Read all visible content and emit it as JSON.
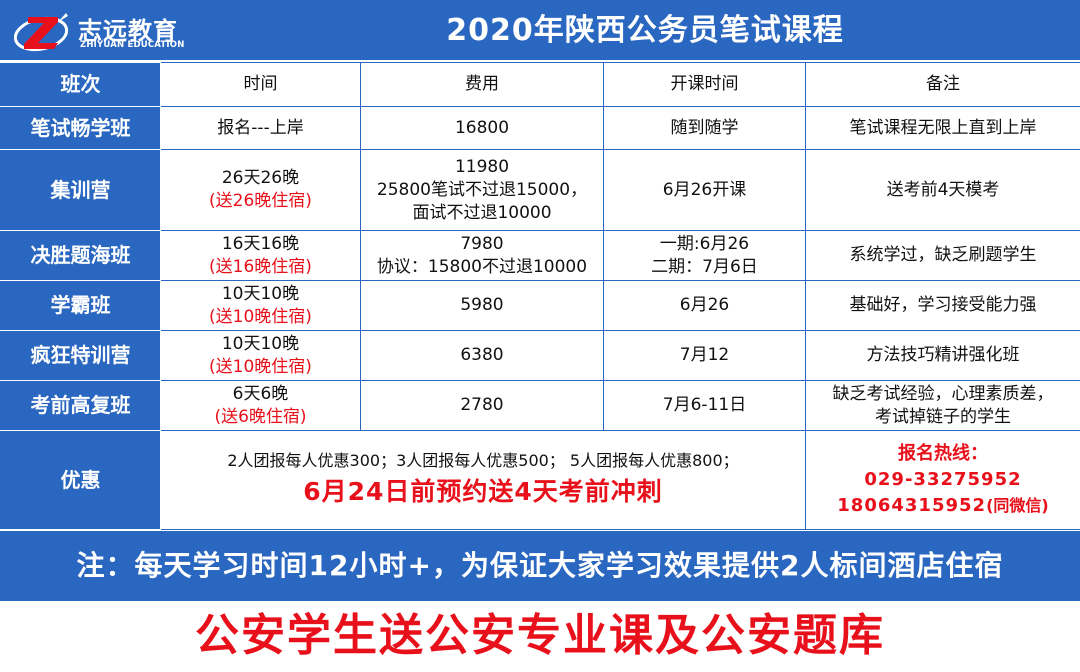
{
  "header": {
    "brand_name": "志远教育",
    "brand_sub": "ZHIYUAN EDUCATION",
    "title": "2020年陕西公务员笔试课程"
  },
  "columns": [
    "班次",
    "时间",
    "费用",
    "开课时间",
    "备注"
  ],
  "rows": [
    {
      "name": "笔试畅学班",
      "time": [
        "报名---上岸"
      ],
      "fee": [
        "16800"
      ],
      "start": [
        "随到随学"
      ],
      "note": [
        "笔试课程无限上直到上岸"
      ]
    },
    {
      "name": "集训营",
      "time": [
        "26天26晚"
      ],
      "time_bonus": "(送26晚住宿)",
      "fee": [
        "11980",
        "25800笔试不过退15000，",
        "面试不过退10000"
      ],
      "start": [
        "6月26开课"
      ],
      "note": [
        "送考前4天模考"
      ]
    },
    {
      "name": "决胜题海班",
      "time": [
        "16天16晚"
      ],
      "time_bonus": "(送16晚住宿)",
      "fee": [
        "7980",
        "协议：15800不过退10000"
      ],
      "start": [
        "一期:6月26",
        "二期：7月6日"
      ],
      "note": [
        "系统学过，缺乏刷题学生"
      ]
    },
    {
      "name": "学霸班",
      "time": [
        "10天10晚"
      ],
      "time_bonus": "(送10晚住宿)",
      "fee": [
        "5980"
      ],
      "start": [
        "6月26"
      ],
      "note": [
        "基础好，学习接受能力强"
      ]
    },
    {
      "name": "疯狂特训营",
      "time": [
        "10天10晚"
      ],
      "time_bonus": "(送10晚住宿)",
      "fee": [
        "6380"
      ],
      "start": [
        "7月12"
      ],
      "note": [
        "方法技巧精讲强化班"
      ]
    },
    {
      "name": "考前高复班",
      "time": [
        "6天6晚"
      ],
      "time_bonus": "(送6晚住宿)",
      "fee": [
        "2780"
      ],
      "start": [
        "7月6-11日"
      ],
      "note": [
        "缺乏考试经验，心理素质差，",
        "考试掉链子的学生"
      ]
    }
  ],
  "promo": {
    "label": "优惠",
    "line": "2人团报每人优惠300；3人团报每人优惠500； 5人团报每人优惠800；",
    "highlight": "6月24日前预约送4天考前冲刺",
    "hotline_label": "报名热线：",
    "phone1": "029-33275952",
    "phone2": "18064315952",
    "phone2_note": "(同微信)"
  },
  "note_bar": "注：每天学习时间12小时+，为保证大家学习效果提供2人标间酒店住宿",
  "banner": "公安学生送公安专业课及公安题库",
  "colors": {
    "blue": "#2a67c0",
    "red": "#e8101a"
  }
}
